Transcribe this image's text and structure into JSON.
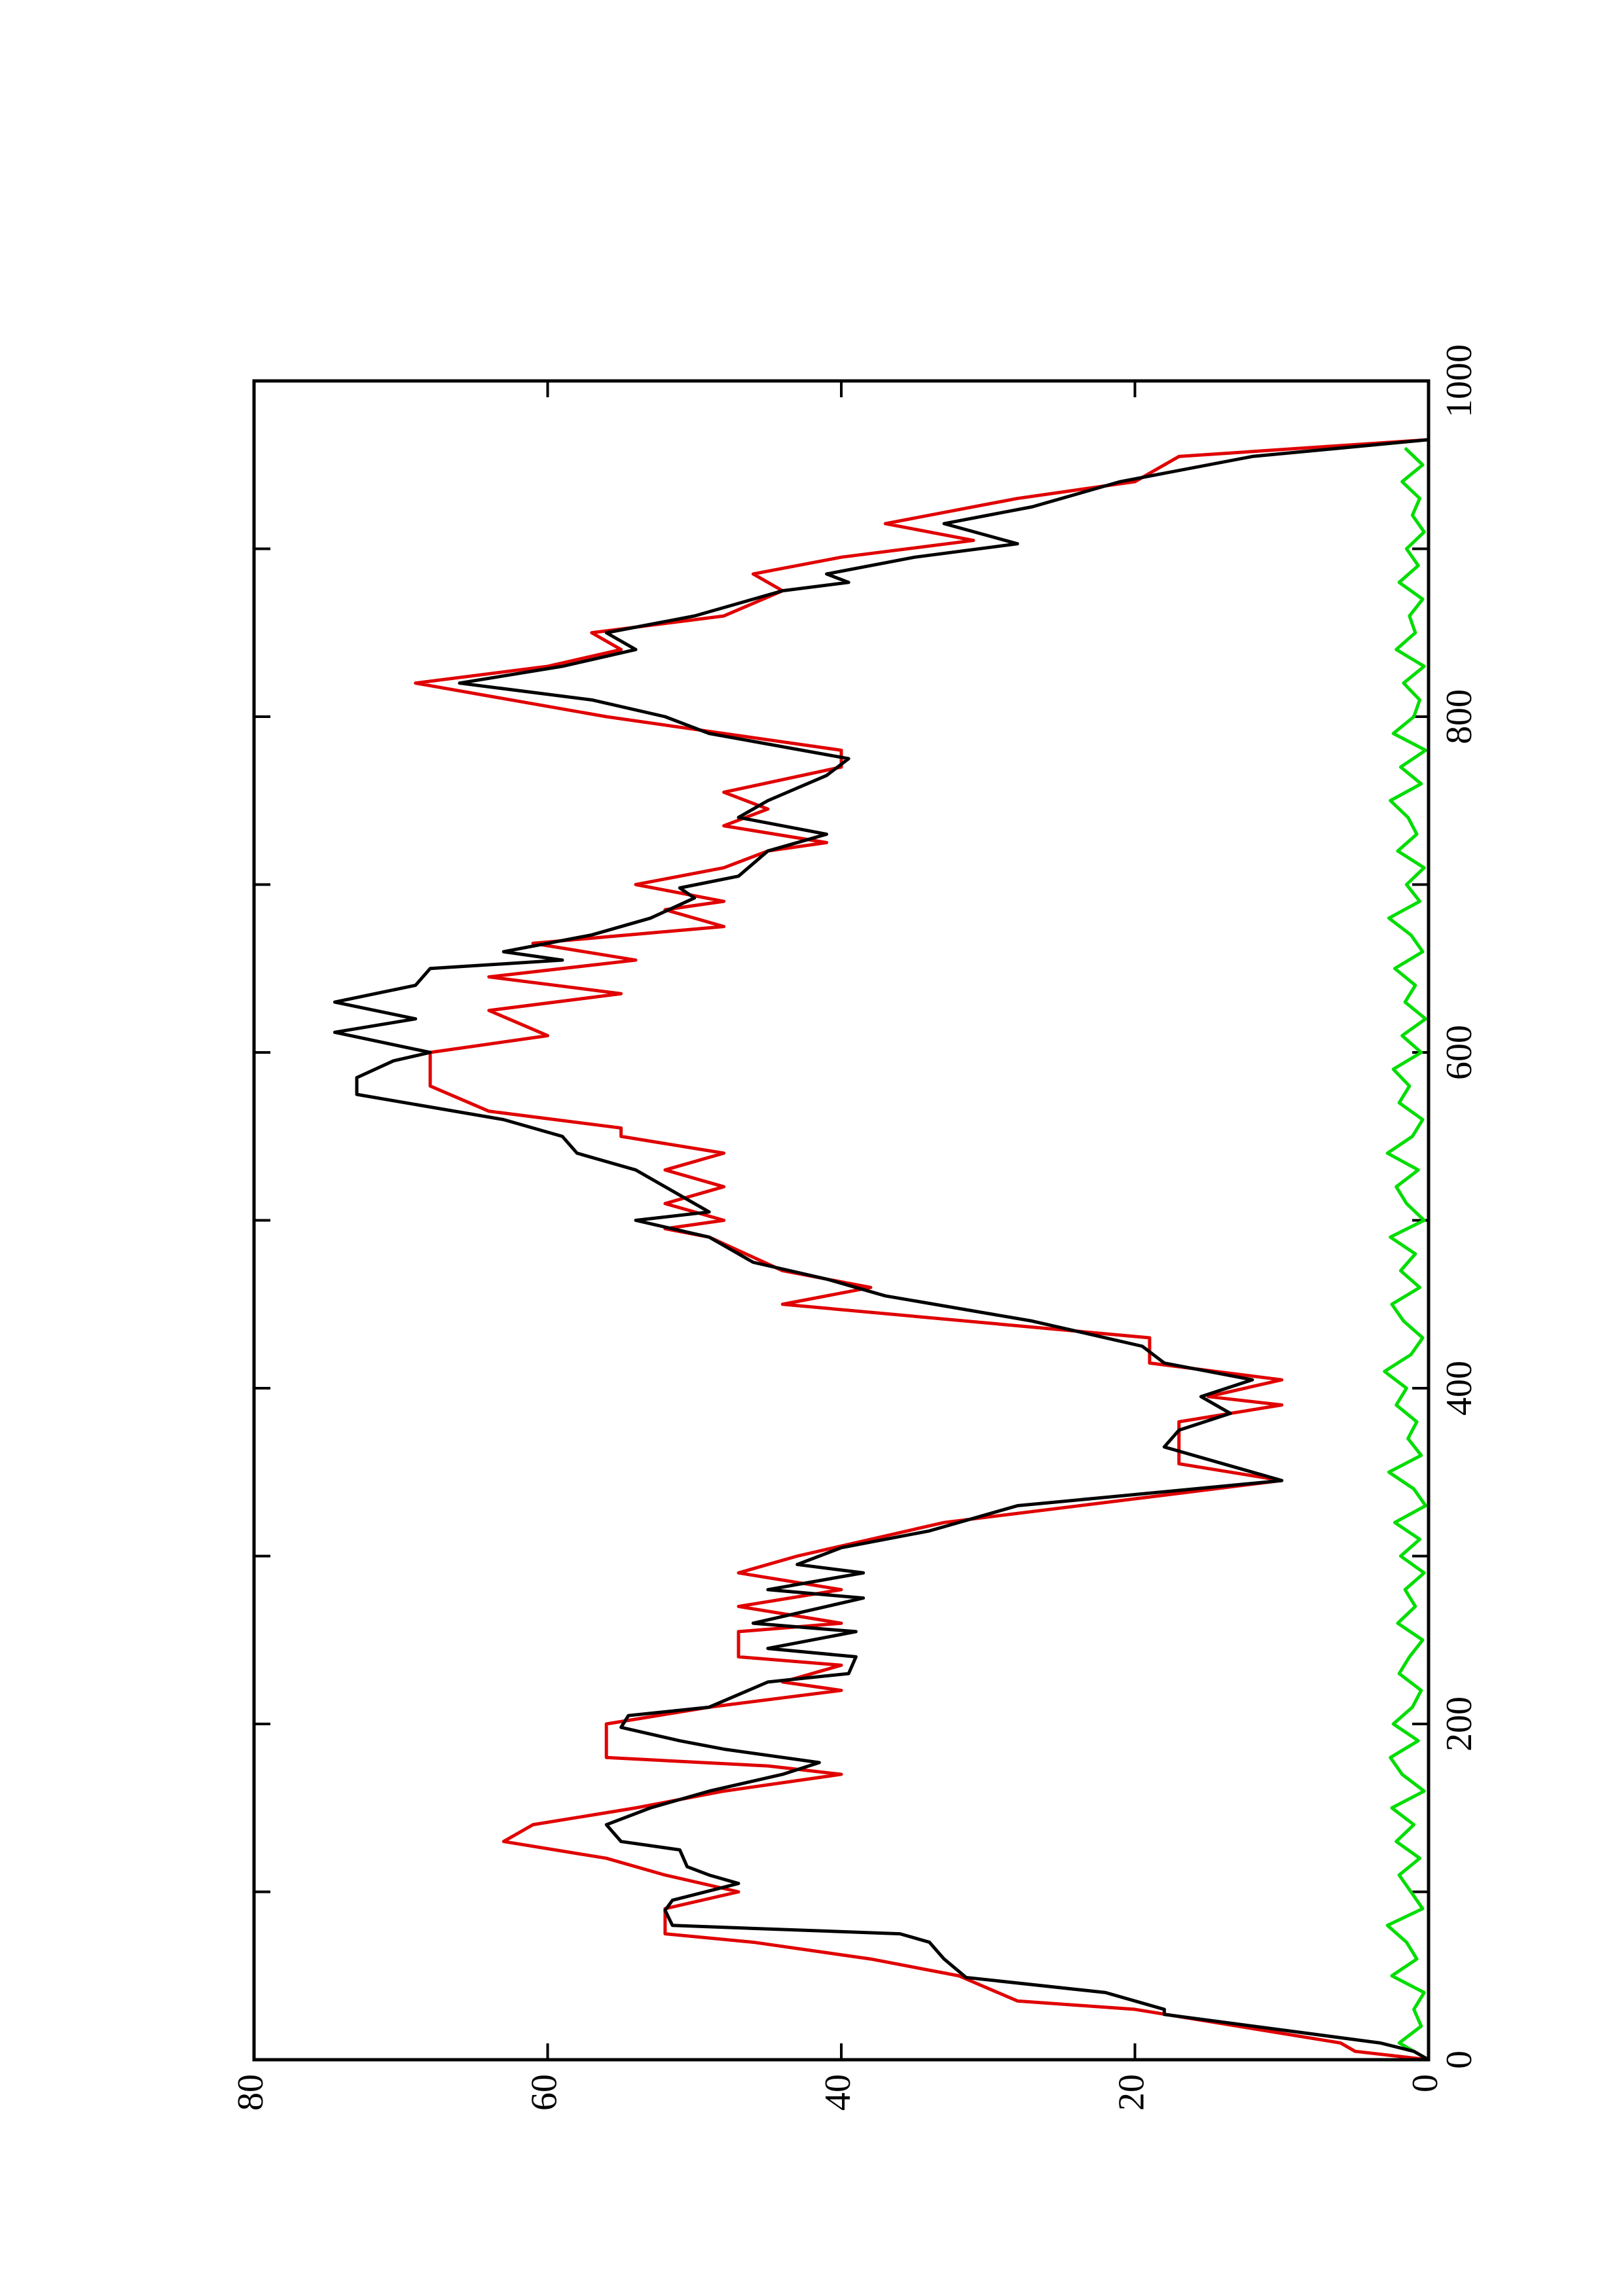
{
  "chart_data": {
    "type": "line",
    "xlim": [
      0,
      1000
    ],
    "xticks": [
      0,
      200,
      400,
      600,
      800,
      1000
    ],
    "xminorticks": [
      100,
      300,
      500,
      700,
      900
    ],
    "ylim": [
      0,
      80
    ],
    "yticks": [
      0,
      20,
      40,
      60,
      80
    ],
    "series": [
      {
        "color": "#000000",
        "x": [
          0,
          5,
          10,
          27,
          30,
          40,
          49,
          60,
          70,
          75,
          80,
          89,
          95,
          105,
          110,
          115,
          125,
          130,
          140,
          150,
          160,
          170,
          177,
          185,
          190,
          198,
          205,
          210,
          225,
          230,
          240,
          245,
          255,
          260,
          275,
          280,
          290,
          295,
          305,
          315,
          330,
          345,
          355,
          365,
          375,
          385,
          395,
          405,
          415,
          425,
          440,
          455,
          465,
          475,
          490,
          500,
          505,
          515,
          530,
          540,
          550,
          560,
          575,
          585,
          595,
          600,
          612,
          620,
          630,
          640,
          650,
          655,
          660,
          670,
          680,
          692,
          698,
          705,
          720,
          730,
          740,
          750,
          765,
          775,
          790,
          800,
          810,
          820,
          830,
          840,
          850,
          860,
          875,
          880,
          885,
          895,
          903,
          915,
          925,
          940,
          955,
          965
        ],
        "values": [
          0,
          1,
          3.3,
          18,
          18,
          22,
          31.5,
          33,
          34,
          36,
          51.5,
          52,
          51.5,
          47,
          49,
          50.5,
          51,
          55,
          56,
          53,
          49,
          44,
          41.5,
          48,
          51,
          55,
          54.5,
          49,
          45,
          39.5,
          39,
          45,
          39,
          46,
          38.5,
          45,
          38.5,
          43,
          40,
          34,
          28,
          10,
          14,
          18,
          17,
          13.5,
          15.5,
          12,
          18,
          19.5,
          27,
          37,
          41,
          46,
          49,
          54,
          49,
          51,
          54,
          58,
          59,
          63,
          73,
          73,
          70.5,
          68,
          74.5,
          69,
          74.5,
          69,
          68,
          59,
          63,
          57,
          53,
          50,
          51,
          47,
          45,
          41,
          47,
          45,
          41,
          39.5,
          49,
          52,
          57,
          66,
          59,
          54,
          56,
          50,
          44,
          39.5,
          41,
          35,
          28,
          33,
          27,
          21,
          12,
          0
        ]
      },
      {
        "color": "#e00000",
        "x": [
          0,
          5,
          10,
          30,
          35,
          50,
          60,
          70,
          75,
          90,
          100,
          110,
          120,
          130,
          140,
          150,
          160,
          170,
          175,
          180,
          200,
          210,
          220,
          225,
          235,
          240,
          255,
          260,
          270,
          280,
          290,
          300,
          320,
          345,
          355,
          380,
          390,
          395,
          405,
          415,
          430,
          450,
          460,
          470,
          490,
          495,
          500,
          510,
          520,
          530,
          540,
          550,
          555,
          565,
          580,
          600,
          610,
          625,
          635,
          645,
          655,
          665,
          675,
          685,
          690,
          700,
          710,
          720,
          725,
          735,
          745,
          755,
          770,
          780,
          800,
          820,
          830,
          840,
          850,
          860,
          875,
          885,
          895,
          905,
          915,
          930,
          940,
          955,
          965
        ],
        "values": [
          0,
          5,
          6,
          20,
          28,
          32,
          38,
          46,
          52,
          52,
          47,
          52,
          56,
          63,
          61,
          54,
          48,
          40,
          45,
          56,
          56,
          49,
          40,
          44,
          40,
          47,
          47,
          40,
          47,
          40,
          47,
          43,
          33,
          10,
          17,
          17,
          10,
          15,
          10,
          19,
          19,
          44,
          38,
          44,
          49,
          52,
          48,
          52,
          48,
          52,
          48,
          55,
          55,
          64,
          68,
          68,
          60,
          64,
          55,
          64,
          54,
          61,
          48,
          52,
          48,
          54,
          48,
          45,
          41,
          48,
          45,
          48,
          40,
          40,
          56,
          69,
          60,
          55,
          57,
          48,
          44,
          46,
          40,
          31,
          37,
          28,
          20,
          17,
          0
        ]
      },
      {
        "color": "#00dd00",
        "x": [
          0,
          10,
          20,
          30,
          40,
          50,
          60,
          70,
          80,
          90,
          100,
          110,
          120,
          130,
          140,
          150,
          160,
          170,
          180,
          190,
          200,
          210,
          220,
          230,
          240,
          250,
          260,
          270,
          280,
          290,
          300,
          310,
          320,
          330,
          340,
          350,
          360,
          370,
          380,
          390,
          400,
          410,
          420,
          430,
          440,
          450,
          460,
          470,
          480,
          490,
          500,
          510,
          520,
          530,
          540,
          550,
          560,
          570,
          580,
          590,
          600,
          610,
          620,
          630,
          640,
          650,
          660,
          670,
          680,
          690,
          700,
          710,
          720,
          730,
          740,
          750,
          760,
          770,
          780,
          790,
          800,
          810,
          820,
          830,
          840,
          850,
          860,
          870,
          880,
          890,
          900,
          910,
          920,
          930,
          940,
          950,
          960
        ],
        "values": [
          0,
          2,
          0.5,
          1,
          0.3,
          2.5,
          0.8,
          1.5,
          2.8,
          0.4,
          1.2,
          2,
          0.6,
          2.2,
          1,
          2.5,
          0.3,
          1.8,
          2.6,
          0.7,
          2.4,
          1.1,
          0.5,
          2,
          1.3,
          0.4,
          2.1,
          0.9,
          1.6,
          0.3,
          1.9,
          0.6,
          2.3,
          0.2,
          1,
          2.7,
          0.5,
          1.4,
          0.8,
          2.2,
          1.5,
          3,
          1.2,
          0.4,
          1.7,
          2.5,
          0.6,
          1.9,
          0.9,
          2.6,
          0.3,
          1.5,
          2.2,
          0.7,
          2.8,
          1.1,
          0.4,
          2,
          1.3,
          2.4,
          0.5,
          1.8,
          0.2,
          1.6,
          0.9,
          2.3,
          0.4,
          1.2,
          2.7,
          0.6,
          1.5,
          0.3,
          2.1,
          0.8,
          1.4,
          2.6,
          0.5,
          1.9,
          0.2,
          2.4,
          1,
          0.6,
          1.7,
          0.3,
          2.2,
          0.9,
          1.3,
          0.4,
          2,
          0.7,
          1.5,
          0.3,
          1.1,
          0.6,
          1.8,
          0.4,
          1.6
        ]
      }
    ]
  }
}
